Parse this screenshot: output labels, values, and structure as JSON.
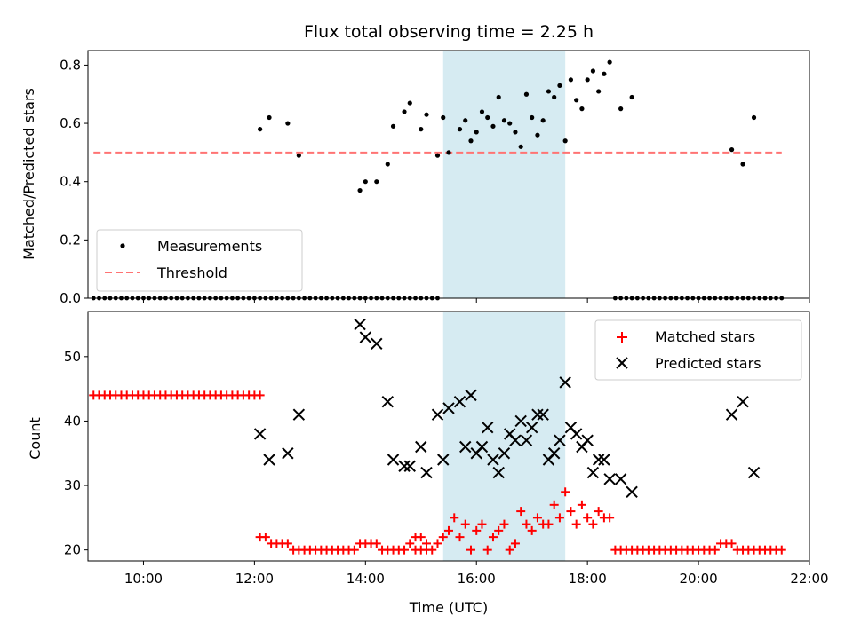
{
  "chart_data": [
    {
      "type": "scatter",
      "title": "Flux total observing time = 2.25 h",
      "xlabel": "",
      "ylabel": "Matched/Predicted stars",
      "xlim": [
        "09:00",
        "22:00"
      ],
      "ylim": [
        0,
        0.85
      ],
      "yticks": [
        "0.0",
        "0.2",
        "0.4",
        "0.6",
        "0.8"
      ],
      "legend_placement": "lower-left",
      "highlight_span": {
        "x0": "15:24",
        "x1": "17:36",
        "color": "#add8e6"
      },
      "threshold": {
        "name": "Threshold",
        "value": 0.5,
        "x0": "09:06",
        "x1": "21:30",
        "color": "#ff7373"
      },
      "series": [
        {
          "name": "Measurements",
          "color": "#000000",
          "points": [
            [
              "12:06",
              0.58
            ],
            [
              "12:16",
              0.62
            ],
            [
              "12:36",
              0.6
            ],
            [
              "12:48",
              0.49
            ],
            [
              "13:54",
              0.37
            ],
            [
              "14:00",
              0.4
            ],
            [
              "14:12",
              0.4
            ],
            [
              "14:24",
              0.46
            ],
            [
              "14:30",
              0.59
            ],
            [
              "14:42",
              0.64
            ],
            [
              "14:48",
              0.67
            ],
            [
              "15:00",
              0.58
            ],
            [
              "15:06",
              0.63
            ],
            [
              "15:18",
              0.49
            ],
            [
              "15:24",
              0.62
            ],
            [
              "15:30",
              0.5
            ],
            [
              "15:42",
              0.58
            ],
            [
              "15:48",
              0.61
            ],
            [
              "15:54",
              0.54
            ],
            [
              "16:00",
              0.57
            ],
            [
              "16:06",
              0.64
            ],
            [
              "16:12",
              0.62
            ],
            [
              "16:18",
              0.59
            ],
            [
              "16:24",
              0.69
            ],
            [
              "16:30",
              0.61
            ],
            [
              "16:36",
              0.6
            ],
            [
              "16:42",
              0.57
            ],
            [
              "16:48",
              0.52
            ],
            [
              "16:54",
              0.7
            ],
            [
              "17:00",
              0.62
            ],
            [
              "17:06",
              0.56
            ],
            [
              "17:12",
              0.61
            ],
            [
              "17:18",
              0.71
            ],
            [
              "17:24",
              0.69
            ],
            [
              "17:30",
              0.73
            ],
            [
              "17:36",
              0.54
            ],
            [
              "17:42",
              0.75
            ],
            [
              "17:48",
              0.68
            ],
            [
              "17:54",
              0.65
            ],
            [
              "18:00",
              0.75
            ],
            [
              "18:06",
              0.78
            ],
            [
              "18:12",
              0.71
            ],
            [
              "18:18",
              0.77
            ],
            [
              "18:24",
              0.81
            ],
            [
              "18:36",
              0.65
            ],
            [
              "18:48",
              0.69
            ],
            [
              "20:36",
              0.51
            ],
            [
              "20:48",
              0.46
            ],
            [
              "21:00",
              0.62
            ]
          ],
          "zero_runs": [
            [
              "09:06",
              "13:54"
            ],
            [
              "14:00",
              "15:18"
            ],
            [
              "18:30",
              "21:30"
            ]
          ],
          "zero_step_minutes": 6
        }
      ]
    },
    {
      "type": "scatter",
      "title": "",
      "xlabel": "Time (UTC)",
      "ylabel": "Count",
      "xlim": [
        "09:00",
        "22:00"
      ],
      "ylim": [
        18.3,
        57
      ],
      "yticks": [
        "20",
        "30",
        "40",
        "50"
      ],
      "xticks": [
        "10:00",
        "12:00",
        "14:00",
        "16:00",
        "18:00",
        "20:00",
        "22:00"
      ],
      "legend_placement": "upper-right",
      "highlight_span": {
        "x0": "15:24",
        "x1": "17:36",
        "color": "#add8e6"
      },
      "series": [
        {
          "name": "Matched stars",
          "marker": "plus",
          "color": "#ff0000",
          "constant_runs": [
            [
              "09:06",
              "12:06",
              44
            ],
            [
              "12:42",
              "13:48",
              20
            ],
            [
              "14:24",
              "14:42",
              20
            ],
            [
              "14:54",
              "15:12",
              20
            ],
            [
              "18:30",
              "20:18",
              20
            ],
            [
              "20:42",
              "21:30",
              20
            ]
          ],
          "run_step_minutes": 6,
          "points": [
            [
              "12:06",
              22
            ],
            [
              "12:12",
              22
            ],
            [
              "12:18",
              21
            ],
            [
              "12:24",
              21
            ],
            [
              "12:30",
              21
            ],
            [
              "12:36",
              21
            ],
            [
              "13:54",
              21
            ],
            [
              "14:00",
              21
            ],
            [
              "14:06",
              21
            ],
            [
              "14:12",
              21
            ],
            [
              "14:18",
              20
            ],
            [
              "14:48",
              21
            ],
            [
              "14:54",
              22
            ],
            [
              "15:00",
              22
            ],
            [
              "15:06",
              21
            ],
            [
              "15:18",
              21
            ],
            [
              "15:24",
              22
            ],
            [
              "15:30",
              23
            ],
            [
              "15:36",
              25
            ],
            [
              "15:42",
              22
            ],
            [
              "15:48",
              24
            ],
            [
              "15:54",
              20
            ],
            [
              "16:00",
              23
            ],
            [
              "16:06",
              24
            ],
            [
              "16:12",
              20
            ],
            [
              "16:18",
              22
            ],
            [
              "16:24",
              23
            ],
            [
              "16:30",
              24
            ],
            [
              "16:36",
              20
            ],
            [
              "16:42",
              21
            ],
            [
              "16:48",
              26
            ],
            [
              "16:54",
              24
            ],
            [
              "17:00",
              23
            ],
            [
              "17:06",
              25
            ],
            [
              "17:12",
              24
            ],
            [
              "17:18",
              24
            ],
            [
              "17:24",
              27
            ],
            [
              "17:30",
              25
            ],
            [
              "17:36",
              29
            ],
            [
              "17:42",
              26
            ],
            [
              "17:48",
              24
            ],
            [
              "17:54",
              27
            ],
            [
              "18:00",
              25
            ],
            [
              "18:06",
              24
            ],
            [
              "18:12",
              26
            ],
            [
              "18:18",
              25
            ],
            [
              "18:24",
              25
            ],
            [
              "20:24",
              21
            ],
            [
              "20:30",
              21
            ],
            [
              "20:36",
              21
            ]
          ]
        },
        {
          "name": "Predicted stars",
          "marker": "x",
          "color": "#000000",
          "points": [
            [
              "12:06",
              38
            ],
            [
              "12:16",
              34
            ],
            [
              "12:36",
              35
            ],
            [
              "12:48",
              41
            ],
            [
              "13:54",
              55
            ],
            [
              "14:00",
              53
            ],
            [
              "14:12",
              52
            ],
            [
              "14:24",
              43
            ],
            [
              "14:30",
              34
            ],
            [
              "14:42",
              33
            ],
            [
              "14:48",
              33
            ],
            [
              "15:00",
              36
            ],
            [
              "15:06",
              32
            ],
            [
              "15:18",
              41
            ],
            [
              "15:24",
              34
            ],
            [
              "15:30",
              42
            ],
            [
              "15:42",
              43
            ],
            [
              "15:48",
              36
            ],
            [
              "15:54",
              44
            ],
            [
              "16:00",
              35
            ],
            [
              "16:06",
              36
            ],
            [
              "16:12",
              39
            ],
            [
              "16:18",
              34
            ],
            [
              "16:24",
              32
            ],
            [
              "16:30",
              35
            ],
            [
              "16:36",
              38
            ],
            [
              "16:42",
              37
            ],
            [
              "16:48",
              40
            ],
            [
              "16:54",
              37
            ],
            [
              "17:00",
              39
            ],
            [
              "17:06",
              41
            ],
            [
              "17:12",
              41
            ],
            [
              "17:18",
              34
            ],
            [
              "17:24",
              35
            ],
            [
              "17:30",
              37
            ],
            [
              "17:36",
              46
            ],
            [
              "17:42",
              39
            ],
            [
              "17:48",
              38
            ],
            [
              "17:54",
              36
            ],
            [
              "18:00",
              37
            ],
            [
              "18:06",
              32
            ],
            [
              "18:12",
              34
            ],
            [
              "18:18",
              34
            ],
            [
              "18:24",
              31
            ],
            [
              "18:36",
              31
            ],
            [
              "18:48",
              29
            ],
            [
              "20:36",
              41
            ],
            [
              "20:48",
              43
            ],
            [
              "21:00",
              32
            ]
          ]
        }
      ]
    }
  ]
}
